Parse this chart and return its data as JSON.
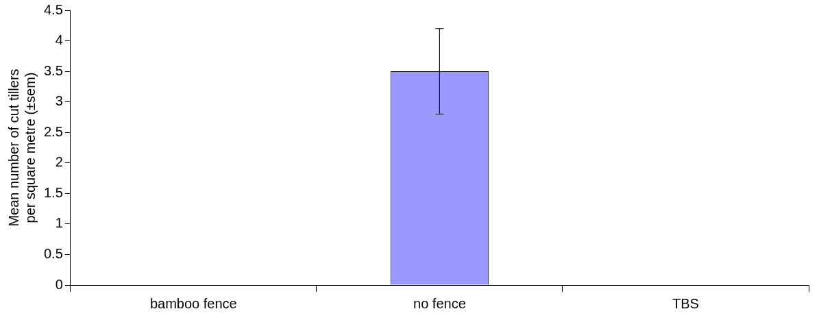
{
  "chart_data": {
    "type": "bar",
    "ylabel": "Mean number of cut tillers per square metre (±sem)",
    "categories": [
      "bamboo fence",
      "no fence",
      "TBS"
    ],
    "values": [
      0,
      3.5,
      0
    ],
    "color": "#9999ff",
    "errors": [
      null,
      0.7,
      null
    ],
    "ylim": [
      0,
      4.5
    ],
    "yticks": [
      0,
      0.5,
      1,
      1.5,
      2,
      2.5,
      3,
      3.5,
      4,
      4.5
    ],
    "grid": false,
    "legend": false
  }
}
